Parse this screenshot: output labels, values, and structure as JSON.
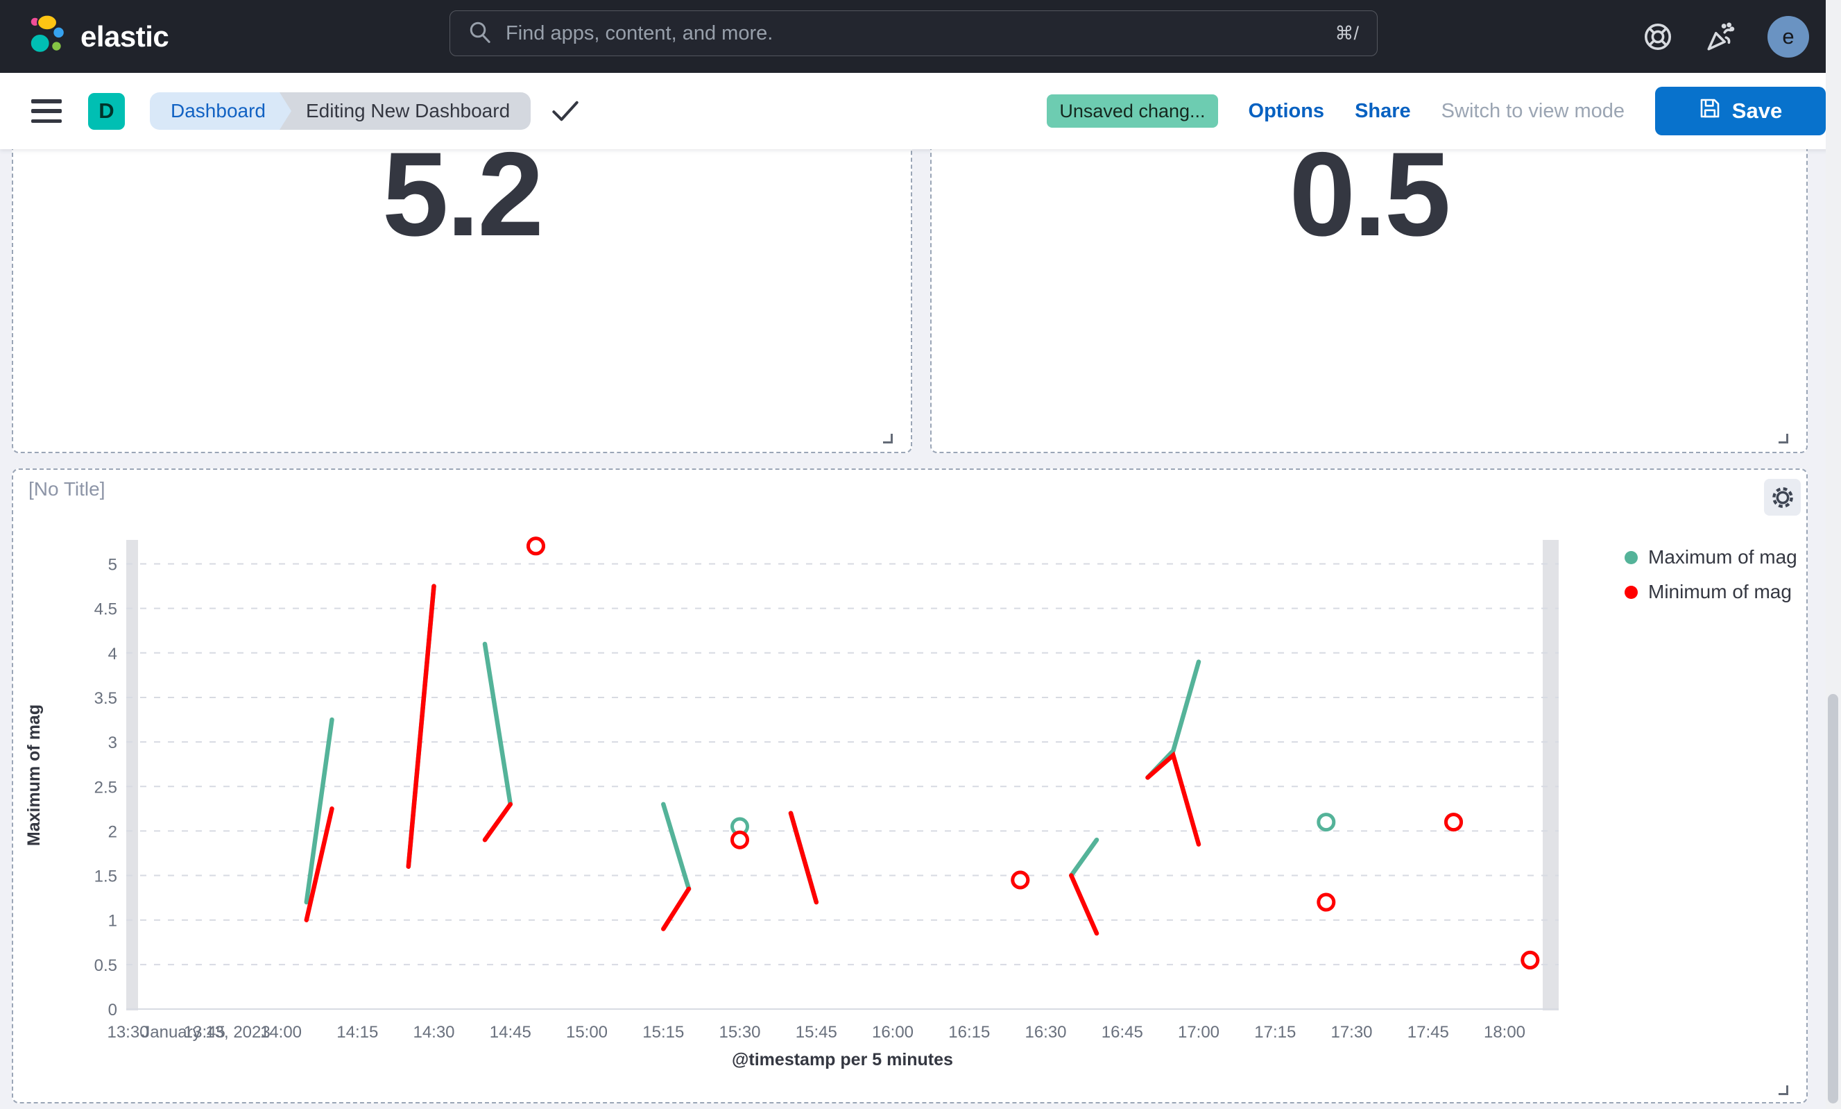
{
  "header": {
    "brand": "elastic",
    "search_placeholder": "Find apps, content, and more.",
    "search_shortcut": "⌘/",
    "avatar_initial": "e"
  },
  "toolbar": {
    "app_initial": "D",
    "breadcrumb_1": "Dashboard",
    "breadcrumb_2": "Editing New Dashboard",
    "unsaved_badge": "Unsaved chang...",
    "options_label": "Options",
    "share_label": "Share",
    "switch_view_label": "Switch to view mode",
    "save_label": "Save"
  },
  "metric_panel_1": {
    "value": "5.2"
  },
  "metric_panel_2": {
    "value": "0.5"
  },
  "chart_panel": {
    "title": "[No Title]"
  },
  "chart_data": {
    "type": "line",
    "title": "[No Title]",
    "xlabel": "@timestamp per 5 minutes",
    "ylabel": "Maximum of mag",
    "x_date_label": "January 13, 2023",
    "ylim": [
      0,
      5.25
    ],
    "grid": "horizontal-dashed",
    "legend_position": "right",
    "y_ticks": [
      0,
      0.5,
      1,
      1.5,
      2,
      2.5,
      3,
      3.5,
      4,
      4.5,
      5
    ],
    "x_start": "13:30",
    "x_ticks": [
      "13:30",
      "13:45",
      "14:00",
      "14:15",
      "14:30",
      "14:45",
      "15:00",
      "15:15",
      "15:30",
      "15:45",
      "16:00",
      "16:15",
      "16:30",
      "16:45",
      "17:00",
      "17:15",
      "17:30",
      "17:45",
      "18:00"
    ],
    "legend": [
      {
        "name": "Maximum of mag",
        "color": "#54b399"
      },
      {
        "name": "Minimum of mag",
        "color": "#ff0000"
      }
    ],
    "series": [
      {
        "name": "Maximum of mag",
        "color": "#54b399",
        "segments": [
          [
            [
              "14:05",
              1.2
            ],
            [
              "14:10",
              3.25
            ]
          ],
          [
            [
              "14:25",
              1.6
            ],
            [
              "14:30",
              4.75
            ]
          ],
          [
            [
              "14:40",
              4.1
            ],
            [
              "14:45",
              2.3
            ]
          ],
          [
            [
              "15:15",
              2.3
            ],
            [
              "15:20",
              1.35
            ]
          ],
          [
            [
              "15:40",
              2.2
            ],
            [
              "15:45",
              1.2
            ]
          ],
          [
            [
              "16:35",
              1.5
            ],
            [
              "16:40",
              1.9
            ]
          ],
          [
            [
              "16:50",
              2.6
            ],
            [
              "16:55",
              2.9
            ],
            [
              "17:00",
              3.9
            ]
          ]
        ],
        "points": [
          [
            "14:50",
            5.2
          ],
          [
            "15:30",
            2.05
          ],
          [
            "16:25",
            1.45
          ],
          [
            "17:25",
            2.1
          ],
          [
            "17:50",
            2.1
          ],
          [
            "18:05",
            0.55
          ]
        ]
      },
      {
        "name": "Minimum of mag",
        "color": "#ff0000",
        "segments": [
          [
            [
              "14:05",
              1.0
            ],
            [
              "14:10",
              2.25
            ]
          ],
          [
            [
              "14:25",
              1.6
            ],
            [
              "14:30",
              4.75
            ]
          ],
          [
            [
              "14:40",
              1.9
            ],
            [
              "14:45",
              2.3
            ]
          ],
          [
            [
              "15:15",
              0.9
            ],
            [
              "15:20",
              1.35
            ]
          ],
          [
            [
              "15:40",
              2.2
            ],
            [
              "15:45",
              1.2
            ]
          ],
          [
            [
              "16:35",
              1.5
            ],
            [
              "16:40",
              0.85
            ]
          ],
          [
            [
              "16:50",
              2.6
            ],
            [
              "16:55",
              2.85
            ],
            [
              "17:00",
              1.85
            ]
          ]
        ],
        "points": [
          [
            "14:50",
            5.2
          ],
          [
            "15:30",
            1.9
          ],
          [
            "16:25",
            1.45
          ],
          [
            "17:25",
            1.2
          ],
          [
            "17:50",
            2.1
          ],
          [
            "18:05",
            0.55
          ]
        ]
      }
    ]
  }
}
